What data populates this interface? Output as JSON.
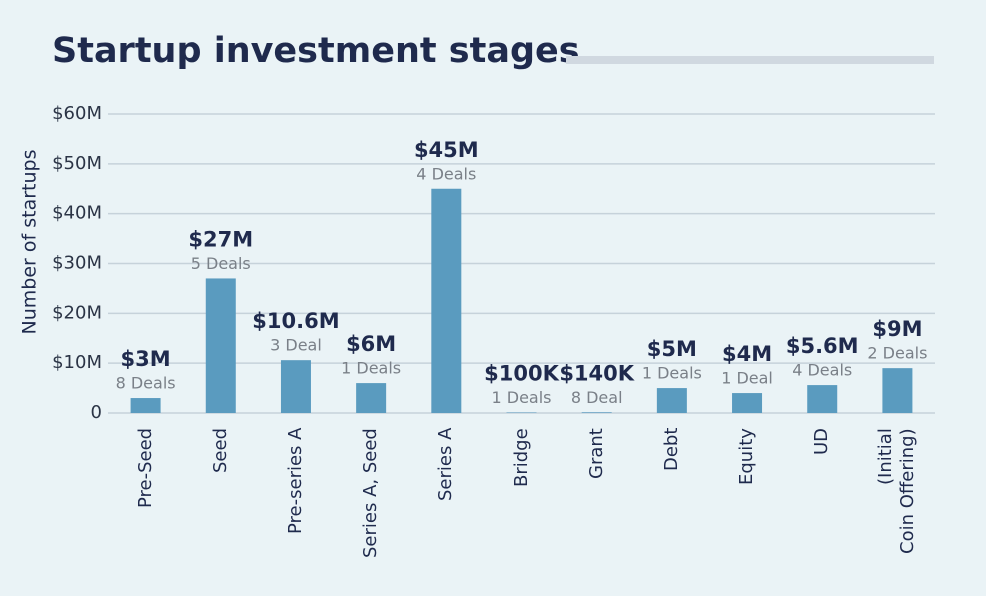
{
  "chart_data": {
    "type": "bar",
    "title": "Startup investment stages",
    "y_label": "Number of startups",
    "categories": [
      "Pre-Seed",
      "Seed",
      "Pre-series A",
      "Series A, Seed",
      "Series A",
      "Bridge",
      "Grant",
      "Debt",
      "Equity",
      "UD",
      "(Initial\nCoin Offering)"
    ],
    "values": [
      3000000,
      27000000,
      10600000,
      6000000,
      45000000,
      100000,
      140000,
      5000000,
      4000000,
      5600000,
      9000000
    ],
    "value_labels": [
      "$3M",
      "$27M",
      "$10.6M",
      "$6M",
      "$45M",
      "$100K",
      "$140K",
      "$5M",
      "$4M",
      "$5.6M",
      "$9M"
    ],
    "deal_labels": [
      "8 Deals",
      "5 Deals",
      "3 Deal",
      "1 Deals",
      "4 Deals",
      "1 Deals",
      "8 Deal",
      "1 Deals",
      "1 Deal",
      "4 Deals",
      "2 Deals"
    ],
    "color": "#5a9bbf",
    "ylim": [
      0,
      60000000
    ],
    "yticks": [
      0,
      {
        "value": 10000000,
        "label": "$10M"
      },
      {
        "value": 20000000,
        "label": "$20M"
      },
      {
        "value": 30000000,
        "label": "$30M"
      },
      {
        "value": 40000000,
        "label": "$40M"
      },
      {
        "value": 50000000,
        "label": "$50M"
      },
      {
        "value": 60000000,
        "label": "$60M"
      }
    ],
    "grid": true
  }
}
